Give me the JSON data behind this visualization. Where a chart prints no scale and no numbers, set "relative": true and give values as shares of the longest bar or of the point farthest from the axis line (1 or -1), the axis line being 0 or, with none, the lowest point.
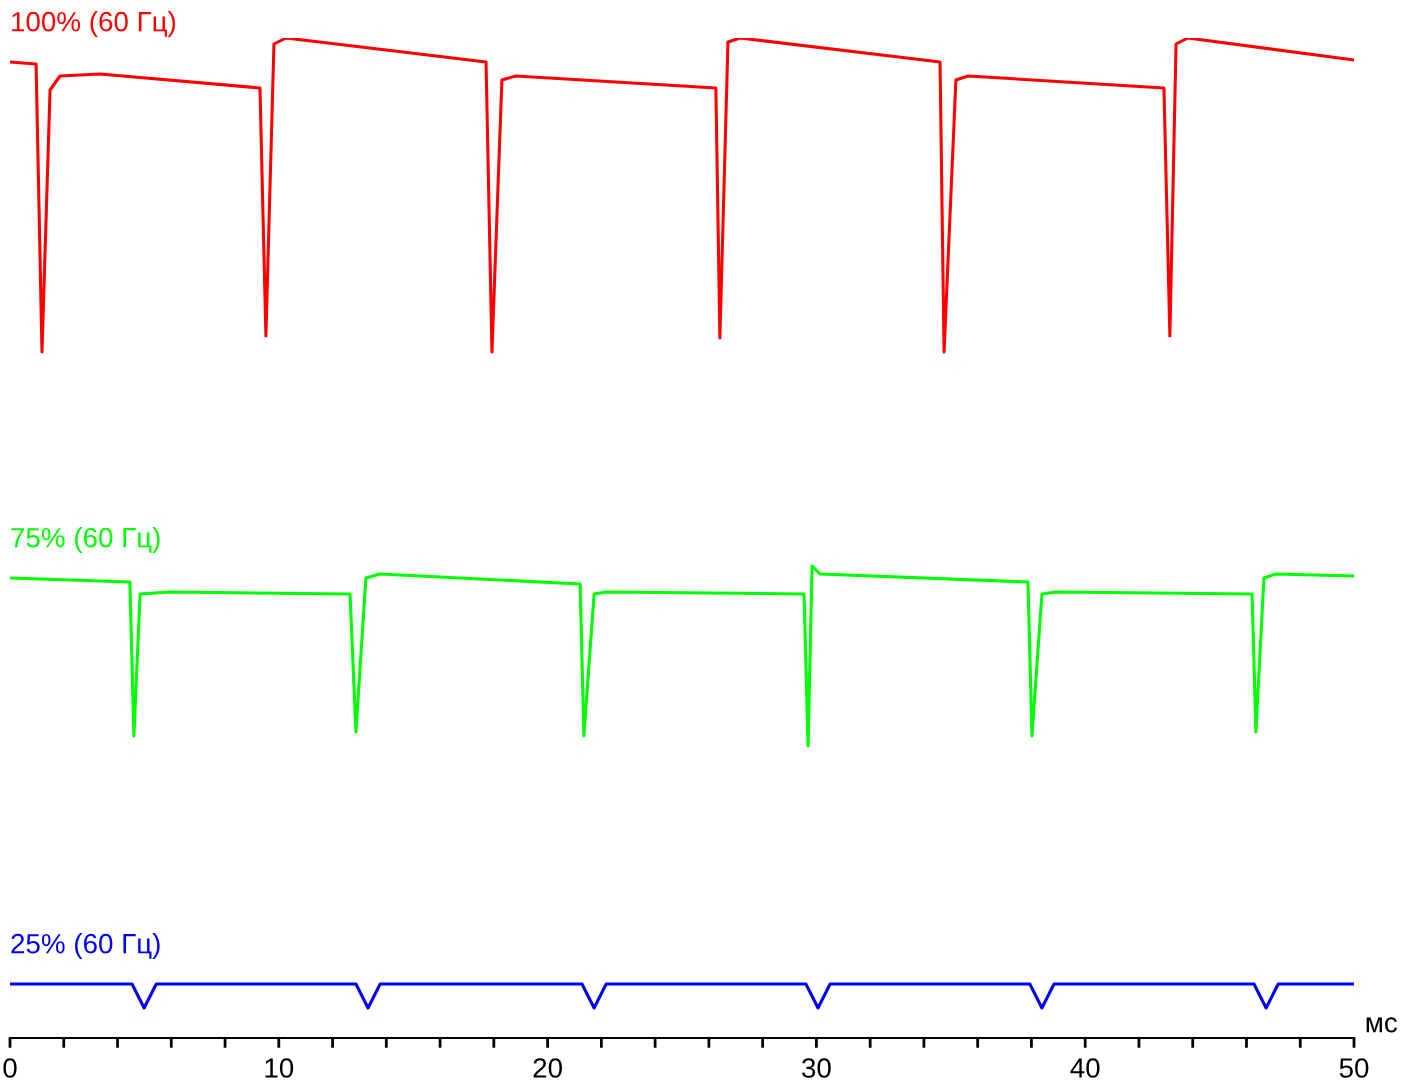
{
  "chart_data": {
    "type": "line",
    "relative": true,
    "xlabel": "мс",
    "xlim": [
      0,
      50
    ],
    "xticks": [
      0,
      {
        "value": 2,
        "label": null
      },
      {
        "value": 4,
        "label": null
      },
      {
        "value": 6,
        "label": null
      },
      {
        "value": 8,
        "label": null
      },
      10,
      {
        "value": 12,
        "label": null
      },
      {
        "value": 14,
        "label": null
      },
      {
        "value": 16,
        "label": null
      },
      {
        "value": 18,
        "label": null
      },
      20,
      {
        "value": 22,
        "label": null
      },
      {
        "value": 24,
        "label": null
      },
      {
        "value": 26,
        "label": null
      },
      {
        "value": 28,
        "label": null
      },
      30,
      {
        "value": 32,
        "label": null
      },
      {
        "value": 34,
        "label": null
      },
      {
        "value": 36,
        "label": null
      },
      {
        "value": 38,
        "label": null
      },
      40,
      {
        "value": 42,
        "label": null
      },
      {
        "value": 44,
        "label": null
      },
      {
        "value": 46,
        "label": null
      },
      {
        "value": 48,
        "label": null
      },
      50
    ],
    "grid": false,
    "legend": false,
    "tick_labels": "x",
    "marker": "none",
    "line_style": "solid",
    "series": [
      {
        "name": "100% (60 Гц)",
        "color": "#ff0000",
        "x": [
          0,
          0.97,
          1.19,
          1.49,
          1.86,
          3.35,
          9.3,
          9.52,
          9.82,
          10.27,
          17.71,
          17.93,
          18.3,
          18.82,
          26.26,
          26.41,
          26.71,
          27.16,
          34.6,
          34.75,
          35.19,
          35.64,
          42.93,
          43.15,
          43.38,
          43.82,
          50
        ],
        "values": [
          0.976,
          0.974,
          0.686,
          0.948,
          0.962,
          0.964,
          0.95,
          0.702,
          0.994,
          1.0,
          0.976,
          0.686,
          0.958,
          0.962,
          0.95,
          0.7,
          0.996,
          1.0,
          0.976,
          0.686,
          0.958,
          0.962,
          0.95,
          0.702,
          0.994,
          1.0,
          0.978
        ]
      },
      {
        "name": "75% (60 Гц)",
        "color": "#00ff00",
        "x": [
          0,
          4.46,
          4.61,
          4.84,
          5.95,
          12.65,
          12.87,
          13.24,
          13.76,
          21.21,
          21.35,
          21.73,
          22.17,
          29.54,
          29.69,
          29.84,
          30.13,
          37.87,
          38.02,
          38.39,
          38.91,
          46.21,
          46.35,
          46.65,
          47.1,
          50
        ],
        "values": [
          0.46,
          0.456,
          0.302,
          0.444,
          0.446,
          0.444,
          0.306,
          0.46,
          0.464,
          0.454,
          0.302,
          0.444,
          0.446,
          0.444,
          0.292,
          0.472,
          0.464,
          0.456,
          0.302,
          0.444,
          0.446,
          0.444,
          0.306,
          0.46,
          0.464,
          0.462
        ]
      },
      {
        "name": "25% (60 Гц)",
        "color": "#0000ff",
        "x": [
          0,
          4.54,
          4.99,
          5.44,
          12.87,
          13.32,
          13.77,
          21.28,
          21.73,
          22.18,
          29.61,
          30.06,
          30.51,
          37.94,
          38.39,
          38.84,
          46.28,
          46.73,
          47.18,
          50
        ],
        "values": [
          0.054,
          0.054,
          0.03,
          0.054,
          0.054,
          0.03,
          0.054,
          0.054,
          0.03,
          0.054,
          0.054,
          0.03,
          0.054,
          0.054,
          0.03,
          0.054,
          0.054,
          0.03,
          0.054,
          0.054
        ]
      }
    ]
  }
}
